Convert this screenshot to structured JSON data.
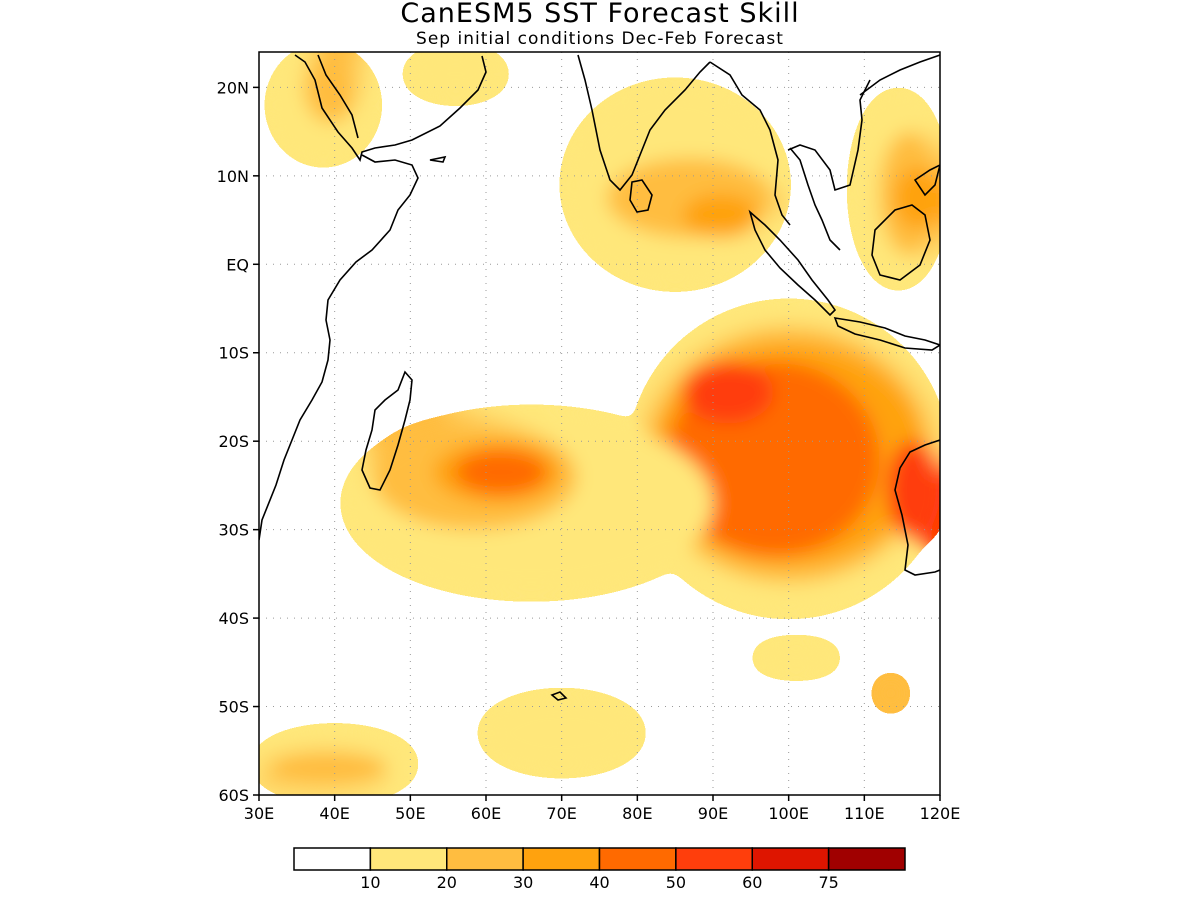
{
  "title": "CanESM5 SST Forecast Skill",
  "subtitle": "Sep initial conditions  Dec-Feb Forecast",
  "map": {
    "lon_range": [
      30,
      120
    ],
    "lat_range": [
      -60,
      24
    ],
    "lon_ticks": [
      {
        "value": 30,
        "label": "30E"
      },
      {
        "value": 40,
        "label": "40E"
      },
      {
        "value": 50,
        "label": "50E"
      },
      {
        "value": 60,
        "label": "60E"
      },
      {
        "value": 70,
        "label": "70E"
      },
      {
        "value": 80,
        "label": "80E"
      },
      {
        "value": 90,
        "label": "90E"
      },
      {
        "value": 100,
        "label": "100E"
      },
      {
        "value": 110,
        "label": "110E"
      },
      {
        "value": 120,
        "label": "120E"
      }
    ],
    "lat_ticks": [
      {
        "value": 20,
        "label": "20N"
      },
      {
        "value": 10,
        "label": "10N"
      },
      {
        "value": 0,
        "label": "EQ"
      },
      {
        "value": -10,
        "label": "10S"
      },
      {
        "value": -20,
        "label": "20S"
      },
      {
        "value": -30,
        "label": "30S"
      },
      {
        "value": -40,
        "label": "40S"
      },
      {
        "value": -50,
        "label": "50S"
      },
      {
        "value": -60,
        "label": "60S"
      }
    ],
    "grid": true
  },
  "colorbar": {
    "colors": [
      "#ffffff",
      "#ffe77a",
      "#ffbd40",
      "#ffa20e",
      "#ff6a00",
      "#ff3e0c",
      "#de1500",
      "#a00000"
    ],
    "labels": [
      "10",
      "20",
      "30",
      "40",
      "50",
      "60",
      "75"
    ]
  },
  "chart_data": {
    "type": "heatmap",
    "variable": "SST forecast skill",
    "levels": [
      10,
      20,
      30,
      40,
      50,
      60,
      75
    ],
    "regions": [
      {
        "level": 10,
        "lon": [
          32,
          45
        ],
        "lat": [
          12,
          24
        ]
      },
      {
        "level": 20,
        "lon": [
          36,
          43
        ],
        "lat": [
          16,
          24
        ]
      },
      {
        "level": 10,
        "lon": [
          50,
          62
        ],
        "lat": [
          19,
          24
        ]
      },
      {
        "level": 10,
        "lon": [
          71,
          99
        ],
        "lat": [
          -2,
          20
        ]
      },
      {
        "level": 20,
        "lon": [
          76,
          98
        ],
        "lat": [
          3,
          12
        ]
      },
      {
        "level": 30,
        "lon": [
          86,
          96
        ],
        "lat": [
          3,
          8
        ]
      },
      {
        "level": 10,
        "lon": [
          109,
          120
        ],
        "lat": [
          -2,
          19
        ]
      },
      {
        "level": 20,
        "lon": [
          112,
          120
        ],
        "lat": [
          1,
          15
        ]
      },
      {
        "level": 30,
        "lon": [
          114,
          120
        ],
        "lat": [
          4,
          11
        ]
      },
      {
        "level": 10,
        "lon": [
          80,
          120
        ],
        "lat": [
          -39,
          -5
        ]
      },
      {
        "level": 20,
        "lon": [
          81,
          119
        ],
        "lat": [
          -36,
          -7
        ]
      },
      {
        "level": 30,
        "lon": [
          82,
          118
        ],
        "lat": [
          -34,
          -9
        ]
      },
      {
        "level": 40,
        "lon": [
          84,
          112
        ],
        "lat": [
          -33,
          -11
        ]
      },
      {
        "level": 50,
        "lon": [
          86,
          98
        ],
        "lat": [
          -18,
          -11
        ]
      },
      {
        "level": 50,
        "lon": [
          113,
          120
        ],
        "lat": [
          -31,
          -20
        ]
      },
      {
        "level": 10,
        "lon": [
          42,
          90
        ],
        "lat": [
          -37,
          -17
        ]
      },
      {
        "level": 20,
        "lon": [
          45,
          72
        ],
        "lat": [
          -30,
          -18
        ]
      },
      {
        "level": 30,
        "lon": [
          53,
          70
        ],
        "lat": [
          -27,
          -20
        ]
      },
      {
        "level": 40,
        "lon": [
          56,
          68
        ],
        "lat": [
          -26,
          -21
        ]
      },
      {
        "level": 10,
        "lon": [
          30,
          50
        ],
        "lat": [
          -60,
          -53
        ]
      },
      {
        "level": 20,
        "lon": [
          31,
          47
        ],
        "lat": [
          -59,
          -55
        ]
      },
      {
        "level": 10,
        "lon": [
          60,
          80
        ],
        "lat": [
          -57,
          -49
        ]
      },
      {
        "level": 10,
        "lon": [
          96,
          106
        ],
        "lat": [
          -46,
          -43
        ]
      },
      {
        "level": 20,
        "lon": [
          112,
          115
        ],
        "lat": [
          -50,
          -47
        ]
      }
    ]
  }
}
